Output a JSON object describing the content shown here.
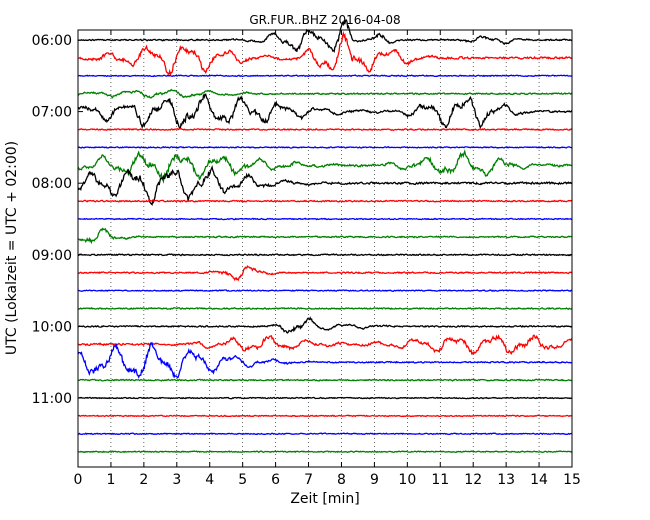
{
  "chart_data": {
    "type": "line",
    "chart_kind": "seismogram helicorder (dayplot)",
    "title": "GR.FUR..BHZ 2016-04-08",
    "xlabel": "Zeit  [min]",
    "ylabel": "UTC (Lokalzeit = UTC + 02:00)",
    "xlim": [
      0,
      15
    ],
    "x_ticks": [
      "0",
      "1",
      "2",
      "3",
      "4",
      "5",
      "6",
      "7",
      "8",
      "9",
      "10",
      "11",
      "12",
      "13",
      "14",
      "15"
    ],
    "y_ticks": [
      "06:00",
      "07:00",
      "08:00",
      "09:00",
      "10:00",
      "11:00"
    ],
    "grid": "vertical dotted at each minute",
    "trace_interval_min": 15,
    "colors": [
      "#000000",
      "#ff0000",
      "#0000ff",
      "#008000"
    ],
    "traces": [
      {
        "start": "06:00",
        "color": "#000000",
        "noise": 0.1,
        "events": [
          {
            "x": 6.8,
            "amp": 1.2,
            "width": 2.0
          },
          {
            "x": 8.0,
            "amp": 1.8,
            "width": 0.6
          },
          {
            "x": 9.1,
            "amp": 0.7,
            "width": 0.8
          },
          {
            "x": 12.6,
            "amp": 0.4,
            "width": 1.5
          }
        ]
      },
      {
        "start": "06:15",
        "color": "#ff0000",
        "noise": 0.15,
        "events": [
          {
            "x": 3.0,
            "amp": 1.5,
            "width": 3.5
          },
          {
            "x": 8.0,
            "amp": 2.0,
            "width": 1.8
          },
          {
            "x": 9.6,
            "amp": 0.8,
            "width": 1.6
          }
        ]
      },
      {
        "start": "06:30",
        "color": "#0000ff",
        "noise": 0.08,
        "events": []
      },
      {
        "start": "06:45",
        "color": "#008000",
        "noise": 0.1,
        "events": [
          {
            "x": 2.5,
            "amp": 0.4,
            "width": 4.0
          }
        ]
      },
      {
        "start": "07:00",
        "color": "#000000",
        "noise": 0.12,
        "events": [
          {
            "x": 3.5,
            "amp": 1.6,
            "width": 6.0
          },
          {
            "x": 11.6,
            "amp": 1.6,
            "width": 2.5
          }
        ]
      },
      {
        "start": "07:15",
        "color": "#ff0000",
        "noise": 0.1,
        "events": []
      },
      {
        "start": "07:30",
        "color": "#0000ff",
        "noise": 0.08,
        "events": []
      },
      {
        "start": "07:45",
        "color": "#008000",
        "noise": 0.15,
        "events": [
          {
            "x": 2.8,
            "amp": 1.3,
            "width": 5.5
          },
          {
            "x": 11.6,
            "amp": 1.2,
            "width": 3.0
          }
        ]
      },
      {
        "start": "08:00",
        "color": "#000000",
        "noise": 0.15,
        "events": [
          {
            "x": 2.5,
            "amp": 1.8,
            "width": 5.0
          }
        ]
      },
      {
        "start": "08:15",
        "color": "#ff0000",
        "noise": 0.1,
        "events": []
      },
      {
        "start": "08:30",
        "color": "#0000ff",
        "noise": 0.08,
        "events": []
      },
      {
        "start": "08:45",
        "color": "#008000",
        "noise": 0.1,
        "events": [
          {
            "x": 0.5,
            "amp": 0.8,
            "width": 1.5
          }
        ]
      },
      {
        "start": "09:00",
        "color": "#000000",
        "noise": 0.1,
        "events": []
      },
      {
        "start": "09:15",
        "color": "#ff0000",
        "noise": 0.1,
        "events": [
          {
            "x": 5.0,
            "amp": 0.8,
            "width": 1.2
          }
        ]
      },
      {
        "start": "09:30",
        "color": "#0000ff",
        "noise": 0.08,
        "events": []
      },
      {
        "start": "09:45",
        "color": "#008000",
        "noise": 0.1,
        "events": []
      },
      {
        "start": "10:00",
        "color": "#000000",
        "noise": 0.1,
        "events": [
          {
            "x": 6.7,
            "amp": 1.0,
            "width": 1.0
          },
          {
            "x": 8.0,
            "amp": 0.3,
            "width": 2.0
          }
        ]
      },
      {
        "start": "10:15",
        "color": "#ff0000",
        "noise": 0.15,
        "events": [
          {
            "x": 5.5,
            "amp": 0.8,
            "width": 3.0
          },
          {
            "x": 12.5,
            "amp": 1.0,
            "width": 5.0
          }
        ]
      },
      {
        "start": "10:30",
        "color": "#0000ff",
        "noise": 0.1,
        "events": [
          {
            "x": 2.0,
            "amp": 1.8,
            "width": 5.0
          }
        ]
      },
      {
        "start": "10:45",
        "color": "#008000",
        "noise": 0.1,
        "events": []
      },
      {
        "start": "11:00",
        "color": "#000000",
        "noise": 0.08,
        "events": []
      },
      {
        "start": "11:15",
        "color": "#ff0000",
        "noise": 0.08,
        "events": []
      },
      {
        "start": "11:30",
        "color": "#0000ff",
        "noise": 0.08,
        "events": []
      },
      {
        "start": "11:45",
        "color": "#008000",
        "noise": 0.08,
        "events": []
      }
    ]
  }
}
